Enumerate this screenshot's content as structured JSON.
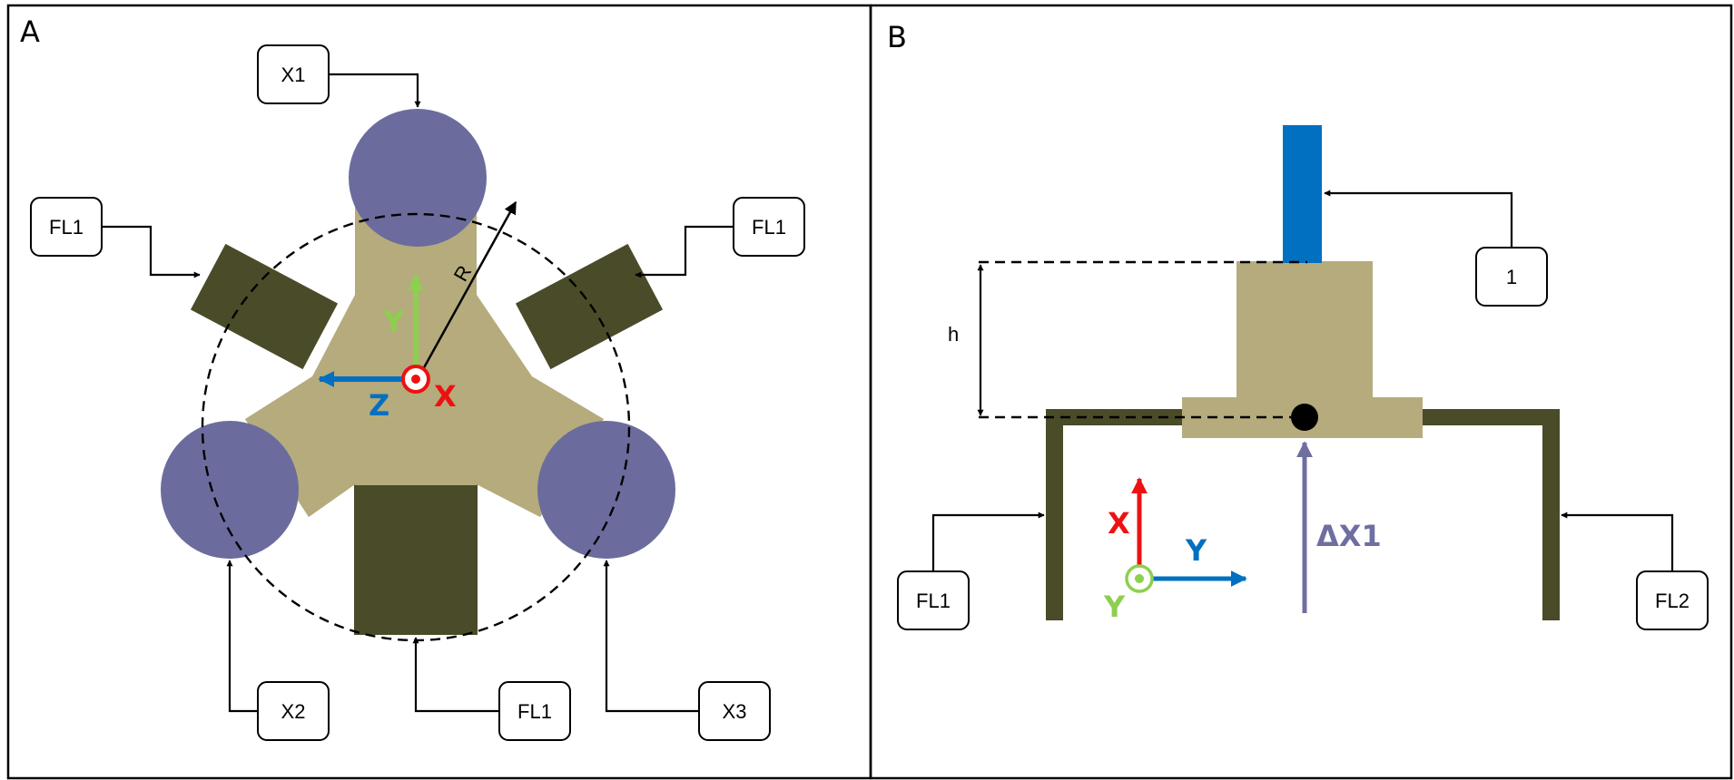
{
  "panels": [
    {
      "letter": "A"
    },
    {
      "letter": "B"
    }
  ],
  "panel_a": {
    "labels": {
      "x1": "X1",
      "x2": "X2",
      "x3": "X3",
      "fl1_left": "FL1",
      "fl1_right": "FL1",
      "fl1_bottom": "FL1"
    },
    "radius_label": "R",
    "axes": {
      "y": "Y",
      "z": "Z",
      "x": "X"
    }
  },
  "panel_b": {
    "labels": {
      "one": "1",
      "fl1": "FL1",
      "fl2": "FL2"
    },
    "height_label": "h",
    "delta_label": "ΔX1",
    "axes": {
      "x": "X",
      "y_horizontal": "Y",
      "y_out": "Y"
    }
  },
  "colors": {
    "body": "#b5ab7d",
    "flexure": "#4a4b28",
    "sphere": "#6b6c9d",
    "actuator": "#0270c1",
    "axis_red": "#ee1111",
    "axis_green": "#8dcf4f",
    "axis_blue": "#0270c1",
    "delta": "#6e6fa0"
  }
}
